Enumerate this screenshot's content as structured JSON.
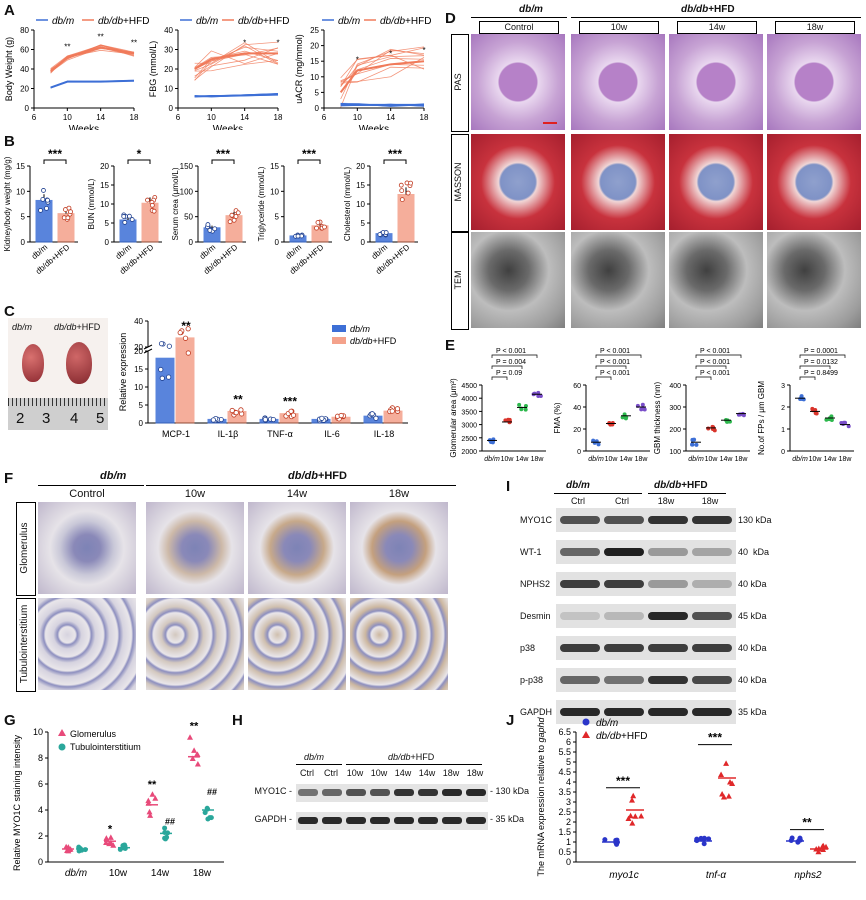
{
  "panel_letters": {
    "a": "A",
    "b": "B",
    "c": "C",
    "d": "D",
    "e": "E",
    "f": "F",
    "g": "G",
    "h": "H",
    "i": "I",
    "j": "J"
  },
  "groups": {
    "dbm": "db/m",
    "dbdb": "db/db",
    "hfd": "+HFD",
    "dbdb_hfd": "db/db+HFD"
  },
  "panel_a": {
    "xlabel": "Weeks",
    "charts": [
      {
        "ylabel": "Body Weight (g)",
        "yticks": [
          "0",
          "20",
          "40",
          "60",
          "80"
        ],
        "xticks": [
          "6",
          "10",
          "14",
          "18"
        ],
        "marks": [
          "**",
          "**",
          "**"
        ]
      },
      {
        "ylabel": "FBG (mmol/L)",
        "yticks": [
          "0",
          "10",
          "20",
          "30",
          "40"
        ],
        "xticks": [
          "6",
          "10",
          "14",
          "18"
        ],
        "marks": [
          "*",
          "*"
        ]
      },
      {
        "ylabel": "uACR (mg/mmol)",
        "yticks": [
          "0",
          "5",
          "10",
          "15",
          "20",
          "25"
        ],
        "xticks": [
          "6",
          "10",
          "14",
          "18"
        ],
        "marks": [
          "*",
          "*",
          "*"
        ]
      }
    ]
  },
  "panel_b": {
    "xcats": [
      "db/m",
      "db/db+HFD"
    ],
    "charts": [
      {
        "ylabel": "Kidney/body weight (mg/g)",
        "yticks": [
          "0",
          "5",
          "10",
          "15"
        ],
        "sig": "***"
      },
      {
        "ylabel": "BUN (mmol/L)",
        "yticks": [
          "0",
          "5",
          "10",
          "15",
          "20"
        ],
        "sig": "*"
      },
      {
        "ylabel": "Serum crea (µmol/L)",
        "yticks": [
          "0",
          "50",
          "100",
          "150"
        ],
        "sig": "***"
      },
      {
        "ylabel": "Triglyceride (mmol/L)",
        "yticks": [
          "0",
          "5",
          "10",
          "15"
        ],
        "sig": "***"
      },
      {
        "ylabel": "Cholesterol (mmol/L)",
        "yticks": [
          "0",
          "5",
          "10",
          "15",
          "20"
        ],
        "sig": "***"
      }
    ]
  },
  "panel_c": {
    "photo_labels": [
      "db/m",
      "db/db+HFD"
    ],
    "ruler": [
      "2",
      "3",
      "4",
      "5"
    ],
    "ylabel": "Relative expression",
    "yticks_low": [
      "0",
      "5",
      "10",
      "15",
      "20"
    ],
    "yticks_high": [
      "20",
      "40"
    ],
    "categories": [
      "MCP-1",
      "IL-1β",
      "TNF-α",
      "IL-6",
      "IL-18"
    ],
    "sig": [
      "**",
      "**",
      "***",
      "",
      ""
    ]
  },
  "panel_d": {
    "headers": [
      "Control",
      "10w",
      "14w",
      "18w"
    ],
    "rows": [
      "PAS",
      "MASSON",
      "TEM"
    ]
  },
  "panel_e": {
    "xcats": [
      "db/m",
      "10w",
      "14w",
      "18w"
    ],
    "charts": [
      {
        "ylabel": "Glomerular area (μm²)",
        "yticks": [
          "2000",
          "2500",
          "3000",
          "3500",
          "4000",
          "4500"
        ],
        "pvals": [
          "P = 0.09",
          "P = 0.004",
          "P < 0.001"
        ]
      },
      {
        "ylabel": "FMA (%)",
        "yticks": [
          "0",
          "20",
          "40",
          "60"
        ],
        "pvals": [
          "P < 0.001",
          "P < 0.001",
          "P < 0.001"
        ]
      },
      {
        "ylabel": "GBM thickness (nm)",
        "yticks": [
          "100",
          "200",
          "300",
          "400"
        ],
        "pvals": [
          "P < 0.001",
          "P < 0.001",
          "P < 0.001"
        ]
      },
      {
        "ylabel": "No.of FPs / μm GBM",
        "yticks": [
          "0",
          "1",
          "2",
          "3"
        ],
        "pvals": [
          "P = 0.8499",
          "P = 0.0132",
          "P = 0.0001"
        ]
      }
    ]
  },
  "panel_f": {
    "headers": [
      "Control",
      "10w",
      "14w",
      "18w"
    ],
    "rows": [
      "Glomerulus",
      "Tubulointerstitium"
    ]
  },
  "panel_g": {
    "ylabel": "Relative MYO1C staining intensity",
    "yticks": [
      "0",
      "2",
      "4",
      "6",
      "8",
      "10"
    ],
    "xcats": [
      "db/m",
      "10w",
      "14w",
      "18w"
    ],
    "legend": [
      "Glomerulus",
      "Tubulointerstitium"
    ],
    "sig_g": [
      "",
      "*",
      "**",
      "**"
    ],
    "sig_t": [
      "",
      "",
      "##",
      "##"
    ]
  },
  "panel_h": {
    "lanes": [
      "Ctrl",
      "Ctrl",
      "10w",
      "10w",
      "14w",
      "14w",
      "18w",
      "18w"
    ],
    "bands": [
      "MYO1C",
      "GAPDH"
    ],
    "kda": [
      "130 kDa",
      "35 kDa"
    ]
  },
  "panel_i": {
    "lanes": [
      "Ctrl",
      "Ctrl",
      "18w",
      "18w"
    ],
    "bands": [
      "MYO1C",
      "WT-1",
      "NPHS2",
      "Desmin",
      "p38",
      "p-p38",
      "GAPDH"
    ],
    "kda": [
      "130 kDa",
      "40  kDa",
      "40 kDa",
      "45 kDa",
      "40 kDa",
      "40 kDa",
      "35 kDa"
    ]
  },
  "panel_j": {
    "ylabel_prefix": "The mRNA expression relative to ",
    "ylabel_gene": "gaphd",
    "yticks": [
      "0",
      "0.5",
      "1",
      "1.5",
      "2",
      "2.5",
      "3",
      "3.5",
      "4",
      "4.5",
      "5",
      "5.5",
      "6",
      "6.5"
    ],
    "xcats": [
      "myo1c",
      "tnf-α",
      "nphs2"
    ],
    "sig": [
      "***",
      "***",
      "**"
    ]
  },
  "colors": {
    "dbm": "#3d6fd6",
    "hfd": "#f07a5a",
    "purple": "#7a4ec9",
    "green": "#2db84d",
    "pink": "#e84a7a",
    "teal": "#2aa79b",
    "darkred": "#d9342b"
  },
  "chart_data": [
    {
      "type": "bar",
      "categories": [
        "db/m",
        "db/db+HFD"
      ],
      "values": [
        8.2,
        5.6
      ],
      "ylabel": "Kidney/body weight (mg/g)",
      "ylim": [
        0,
        15
      ]
    },
    {
      "type": "bar",
      "categories": [
        "db/m",
        "db/db+HFD"
      ],
      "values": [
        5.8,
        10.2
      ],
      "ylabel": "BUN (mmol/L)",
      "ylim": [
        0,
        20
      ]
    },
    {
      "type": "bar",
      "categories": [
        "db/m",
        "db/db+HFD"
      ],
      "values": [
        28,
        52
      ],
      "ylabel": "Serum crea (µmol/L)",
      "ylim": [
        0,
        150
      ]
    },
    {
      "type": "bar",
      "categories": [
        "db/m",
        "db/db+HFD"
      ],
      "values": [
        1.2,
        3.2
      ],
      "ylabel": "Triglyceride (mmol/L)",
      "ylim": [
        0,
        15
      ]
    },
    {
      "type": "bar",
      "categories": [
        "db/m",
        "db/db+HFD"
      ],
      "values": [
        2.2,
        12.5
      ],
      "ylabel": "Cholesterol (mmol/L)",
      "ylim": [
        0,
        20
      ]
    },
    {
      "type": "bar",
      "categories": [
        "MCP-1",
        "IL-1β",
        "TNF-α",
        "IL-6",
        "IL-18"
      ],
      "series": [
        {
          "name": "db/m",
          "values": [
            18,
            1.0,
            1.0,
            1.0,
            1.9
          ]
        },
        {
          "name": "db/db+HFD",
          "values": [
            27,
            3.2,
            2.6,
            1.6,
            3.3
          ]
        }
      ]
    },
    {
      "type": "scatter",
      "categories": [
        "db/m",
        "10w",
        "14w",
        "18w"
      ],
      "values": [
        2400,
        3100,
        3650,
        4150
      ],
      "ylabel": "Glomerular area (μm²)"
    },
    {
      "type": "scatter",
      "categories": [
        "db/m",
        "10w",
        "14w",
        "18w"
      ],
      "values": [
        8,
        25,
        32,
        40
      ],
      "ylabel": "FMA (%)"
    },
    {
      "type": "scatter",
      "categories": [
        "db/m",
        "10w",
        "14w",
        "18w"
      ],
      "values": [
        140,
        205,
        240,
        270
      ],
      "ylabel": "GBM thickness (nm)"
    },
    {
      "type": "scatter",
      "categories": [
        "db/m",
        "10w",
        "14w",
        "18w"
      ],
      "values": [
        2.4,
        1.8,
        1.5,
        1.2
      ],
      "ylabel": "No.of FPs / μm GBM"
    },
    {
      "type": "scatter",
      "categories": [
        "db/m",
        "10w",
        "14w",
        "18w"
      ],
      "series": [
        {
          "name": "Glomerulus",
          "values": [
            1.0,
            1.6,
            4.4,
            8.1
          ]
        },
        {
          "name": "Tubulointerstitium",
          "values": [
            1.0,
            1.1,
            2.2,
            4.0
          ]
        }
      ],
      "ylim": [
        0,
        10
      ]
    },
    {
      "type": "scatter",
      "categories": [
        "myo1c",
        "tnf-α",
        "nphs2"
      ],
      "series": [
        {
          "name": "db/m",
          "values": [
            1.0,
            1.05,
            1.05
          ]
        },
        {
          "name": "db/db+HFD",
          "values": [
            2.6,
            4.2,
            0.65
          ]
        }
      ],
      "ylim": [
        0,
        6.5
      ]
    }
  ]
}
